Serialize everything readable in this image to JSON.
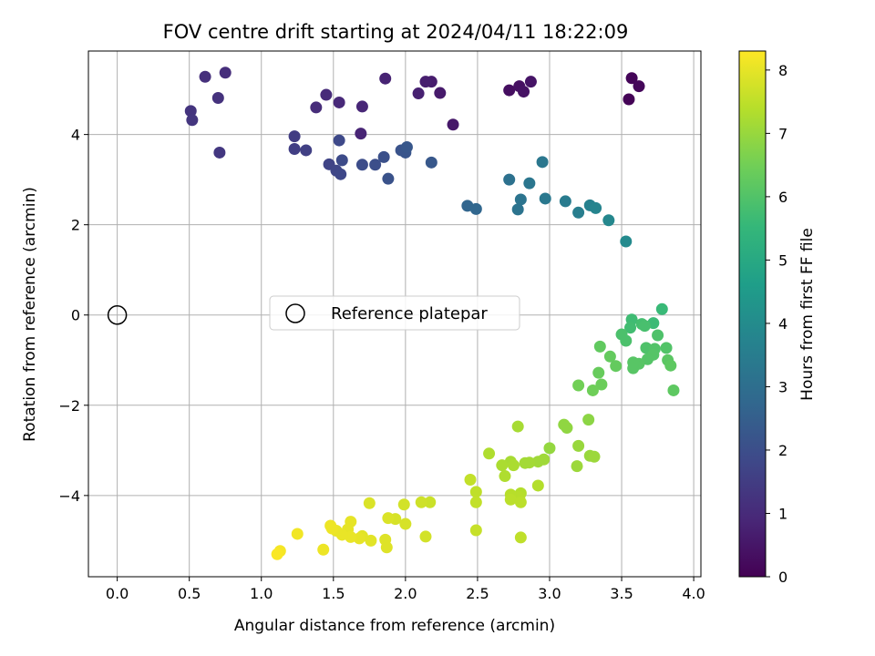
{
  "chart_data": {
    "type": "scatter",
    "title": "FOV centre drift starting at 2024/04/11 18:22:09",
    "xlabel": "Angular distance from reference (arcmin)",
    "ylabel": "Rotation from reference (arcmin)",
    "xlim": [
      -0.2,
      4.05
    ],
    "ylim": [
      -5.8,
      5.85
    ],
    "xticks": [
      "0.0",
      "0.5",
      "1.0",
      "1.5",
      "2.0",
      "2.5",
      "3.0",
      "3.5",
      "4.0"
    ],
    "yticks": [
      "−4",
      "−2",
      "0",
      "2",
      "4"
    ],
    "grid": true,
    "colormap": "viridis",
    "colorbar": {
      "label": "Hours from first FF file",
      "range": [
        0,
        8.3
      ],
      "ticks": [
        "0",
        "1",
        "2",
        "3",
        "4",
        "5",
        "6",
        "7",
        "8"
      ]
    },
    "legend": {
      "label": "Reference platepar",
      "position": "center"
    },
    "reference_point": {
      "x": 0.0,
      "y": 0.0
    },
    "points": [
      {
        "x": 3.55,
        "y": 4.78,
        "t": 0.05
      },
      {
        "x": 3.57,
        "y": 5.25,
        "t": 0.1
      },
      {
        "x": 3.62,
        "y": 5.07,
        "t": 0.15
      },
      {
        "x": 2.72,
        "y": 4.98,
        "t": 0.3
      },
      {
        "x": 2.79,
        "y": 5.07,
        "t": 0.35
      },
      {
        "x": 2.82,
        "y": 4.95,
        "t": 0.4
      },
      {
        "x": 2.87,
        "y": 5.17,
        "t": 0.45
      },
      {
        "x": 2.33,
        "y": 4.22,
        "t": 0.55
      },
      {
        "x": 2.24,
        "y": 4.92,
        "t": 0.6
      },
      {
        "x": 2.18,
        "y": 5.17,
        "t": 0.65
      },
      {
        "x": 2.14,
        "y": 5.17,
        "t": 0.7
      },
      {
        "x": 2.09,
        "y": 4.91,
        "t": 0.75
      },
      {
        "x": 1.86,
        "y": 5.24,
        "t": 0.8
      },
      {
        "x": 1.69,
        "y": 4.02,
        "t": 0.85
      },
      {
        "x": 1.7,
        "y": 4.62,
        "t": 0.9
      },
      {
        "x": 1.54,
        "y": 4.71,
        "t": 0.95
      },
      {
        "x": 1.45,
        "y": 4.88,
        "t": 1.0
      },
      {
        "x": 1.38,
        "y": 4.6,
        "t": 1.05
      },
      {
        "x": 0.75,
        "y": 5.37,
        "t": 1.1
      },
      {
        "x": 0.61,
        "y": 5.28,
        "t": 1.15
      },
      {
        "x": 0.7,
        "y": 4.81,
        "t": 1.2
      },
      {
        "x": 0.51,
        "y": 4.52,
        "t": 1.25
      },
      {
        "x": 0.52,
        "y": 4.32,
        "t": 1.3
      },
      {
        "x": 0.71,
        "y": 3.6,
        "t": 1.35
      },
      {
        "x": 1.23,
        "y": 3.96,
        "t": 1.5
      },
      {
        "x": 1.23,
        "y": 3.68,
        "t": 1.55
      },
      {
        "x": 1.31,
        "y": 3.65,
        "t": 1.6
      },
      {
        "x": 1.47,
        "y": 3.34,
        "t": 1.7
      },
      {
        "x": 1.52,
        "y": 3.2,
        "t": 1.75
      },
      {
        "x": 1.55,
        "y": 3.12,
        "t": 1.8
      },
      {
        "x": 1.54,
        "y": 3.87,
        "t": 1.85
      },
      {
        "x": 1.56,
        "y": 3.43,
        "t": 1.9
      },
      {
        "x": 1.7,
        "y": 3.33,
        "t": 1.95
      },
      {
        "x": 1.79,
        "y": 3.33,
        "t": 2.0
      },
      {
        "x": 1.85,
        "y": 3.5,
        "t": 2.05
      },
      {
        "x": 1.88,
        "y": 3.02,
        "t": 2.1
      },
      {
        "x": 1.97,
        "y": 3.65,
        "t": 2.15
      },
      {
        "x": 2.0,
        "y": 3.6,
        "t": 2.2
      },
      {
        "x": 2.01,
        "y": 3.72,
        "t": 2.25
      },
      {
        "x": 2.18,
        "y": 3.38,
        "t": 2.3
      },
      {
        "x": 2.43,
        "y": 2.42,
        "t": 2.7
      },
      {
        "x": 2.49,
        "y": 2.35,
        "t": 2.75
      },
      {
        "x": 2.72,
        "y": 3.0,
        "t": 3.1
      },
      {
        "x": 2.78,
        "y": 2.34,
        "t": 3.15
      },
      {
        "x": 2.8,
        "y": 2.56,
        "t": 3.2
      },
      {
        "x": 2.86,
        "y": 2.92,
        "t": 3.25
      },
      {
        "x": 2.95,
        "y": 3.39,
        "t": 3.3
      },
      {
        "x": 2.97,
        "y": 2.58,
        "t": 3.35
      },
      {
        "x": 3.11,
        "y": 2.52,
        "t": 3.45
      },
      {
        "x": 3.2,
        "y": 2.27,
        "t": 3.55
      },
      {
        "x": 3.28,
        "y": 2.43,
        "t": 3.65
      },
      {
        "x": 3.32,
        "y": 2.37,
        "t": 3.75
      },
      {
        "x": 3.41,
        "y": 2.1,
        "t": 3.85
      },
      {
        "x": 3.53,
        "y": 1.63,
        "t": 3.95
      },
      {
        "x": 3.78,
        "y": 0.13,
        "t": 5.6
      },
      {
        "x": 3.72,
        "y": -0.18,
        "t": 5.65
      },
      {
        "x": 3.57,
        "y": -0.1,
        "t": 5.7
      },
      {
        "x": 3.56,
        "y": -0.28,
        "t": 5.75
      },
      {
        "x": 3.64,
        "y": -0.2,
        "t": 5.8
      },
      {
        "x": 3.66,
        "y": -0.24,
        "t": 5.85
      },
      {
        "x": 3.5,
        "y": -0.43,
        "t": 5.9
      },
      {
        "x": 3.53,
        "y": -0.57,
        "t": 5.9
      },
      {
        "x": 3.75,
        "y": -0.45,
        "t": 5.95
      },
      {
        "x": 3.67,
        "y": -0.73,
        "t": 5.95
      },
      {
        "x": 3.81,
        "y": -0.73,
        "t": 6.0
      },
      {
        "x": 3.73,
        "y": -0.75,
        "t": 6.0
      },
      {
        "x": 3.72,
        "y": -0.88,
        "t": 6.05
      },
      {
        "x": 3.68,
        "y": -0.98,
        "t": 6.05
      },
      {
        "x": 3.62,
        "y": -1.08,
        "t": 6.1
      },
      {
        "x": 3.58,
        "y": -1.05,
        "t": 6.1
      },
      {
        "x": 3.58,
        "y": -1.18,
        "t": 6.1
      },
      {
        "x": 3.82,
        "y": -1.0,
        "t": 6.15
      },
      {
        "x": 3.84,
        "y": -1.12,
        "t": 6.2
      },
      {
        "x": 3.86,
        "y": -1.67,
        "t": 6.2
      },
      {
        "x": 3.35,
        "y": -0.7,
        "t": 6.25
      },
      {
        "x": 3.42,
        "y": -0.92,
        "t": 6.3
      },
      {
        "x": 3.46,
        "y": -1.13,
        "t": 6.3
      },
      {
        "x": 3.34,
        "y": -1.28,
        "t": 6.35
      },
      {
        "x": 3.36,
        "y": -1.54,
        "t": 6.4
      },
      {
        "x": 3.3,
        "y": -1.67,
        "t": 6.45
      },
      {
        "x": 3.2,
        "y": -1.56,
        "t": 6.5
      },
      {
        "x": 3.27,
        "y": -2.32,
        "t": 6.85
      },
      {
        "x": 3.1,
        "y": -2.43,
        "t": 6.9
      },
      {
        "x": 3.12,
        "y": -2.5,
        "t": 6.9
      },
      {
        "x": 3.0,
        "y": -2.95,
        "t": 6.95
      },
      {
        "x": 3.2,
        "y": -2.9,
        "t": 7.0
      },
      {
        "x": 3.28,
        "y": -3.12,
        "t": 7.0
      },
      {
        "x": 3.31,
        "y": -3.14,
        "t": 7.05
      },
      {
        "x": 3.19,
        "y": -3.35,
        "t": 7.05
      },
      {
        "x": 2.96,
        "y": -3.2,
        "t": 7.1
      },
      {
        "x": 2.92,
        "y": -3.25,
        "t": 7.1
      },
      {
        "x": 2.86,
        "y": -3.27,
        "t": 7.15
      },
      {
        "x": 2.83,
        "y": -3.28,
        "t": 7.15
      },
      {
        "x": 2.78,
        "y": -2.47,
        "t": 7.2
      },
      {
        "x": 2.73,
        "y": -3.25,
        "t": 7.2
      },
      {
        "x": 2.75,
        "y": -3.33,
        "t": 7.25
      },
      {
        "x": 2.67,
        "y": -3.33,
        "t": 7.25
      },
      {
        "x": 2.58,
        "y": -3.07,
        "t": 7.3
      },
      {
        "x": 2.69,
        "y": -3.57,
        "t": 7.3
      },
      {
        "x": 2.92,
        "y": -3.78,
        "t": 7.35
      },
      {
        "x": 2.8,
        "y": -3.95,
        "t": 7.35
      },
      {
        "x": 2.79,
        "y": -4.03,
        "t": 7.4
      },
      {
        "x": 2.73,
        "y": -3.98,
        "t": 7.4
      },
      {
        "x": 2.73,
        "y": -4.09,
        "t": 7.45
      },
      {
        "x": 2.8,
        "y": -4.15,
        "t": 7.45
      },
      {
        "x": 2.8,
        "y": -4.93,
        "t": 7.5
      },
      {
        "x": 2.49,
        "y": -3.92,
        "t": 7.5
      },
      {
        "x": 2.45,
        "y": -3.65,
        "t": 7.55
      },
      {
        "x": 2.49,
        "y": -4.15,
        "t": 7.55
      },
      {
        "x": 2.49,
        "y": -4.77,
        "t": 7.6
      },
      {
        "x": 2.17,
        "y": -4.15,
        "t": 7.65
      },
      {
        "x": 2.11,
        "y": -4.15,
        "t": 7.7
      },
      {
        "x": 1.99,
        "y": -4.2,
        "t": 7.75
      },
      {
        "x": 2.14,
        "y": -4.91,
        "t": 7.75
      },
      {
        "x": 2.0,
        "y": -4.63,
        "t": 7.8
      },
      {
        "x": 1.93,
        "y": -4.52,
        "t": 7.8
      },
      {
        "x": 1.88,
        "y": -4.5,
        "t": 7.85
      },
      {
        "x": 1.75,
        "y": -4.17,
        "t": 7.85
      },
      {
        "x": 1.86,
        "y": -4.98,
        "t": 7.9
      },
      {
        "x": 1.87,
        "y": -5.15,
        "t": 7.9
      },
      {
        "x": 1.76,
        "y": -5.0,
        "t": 7.95
      },
      {
        "x": 1.7,
        "y": -4.9,
        "t": 7.95
      },
      {
        "x": 1.68,
        "y": -4.95,
        "t": 8.0
      },
      {
        "x": 1.62,
        "y": -4.58,
        "t": 8.0
      },
      {
        "x": 1.6,
        "y": -4.75,
        "t": 8.0
      },
      {
        "x": 1.62,
        "y": -4.92,
        "t": 8.05
      },
      {
        "x": 1.56,
        "y": -4.87,
        "t": 8.05
      },
      {
        "x": 1.52,
        "y": -4.78,
        "t": 8.05
      },
      {
        "x": 1.48,
        "y": -4.67,
        "t": 8.1
      },
      {
        "x": 1.49,
        "y": -4.73,
        "t": 8.1
      },
      {
        "x": 1.43,
        "y": -5.2,
        "t": 8.1
      },
      {
        "x": 1.25,
        "y": -4.85,
        "t": 8.15
      },
      {
        "x": 1.13,
        "y": -5.23,
        "t": 8.2
      },
      {
        "x": 1.11,
        "y": -5.3,
        "t": 8.25
      }
    ]
  }
}
